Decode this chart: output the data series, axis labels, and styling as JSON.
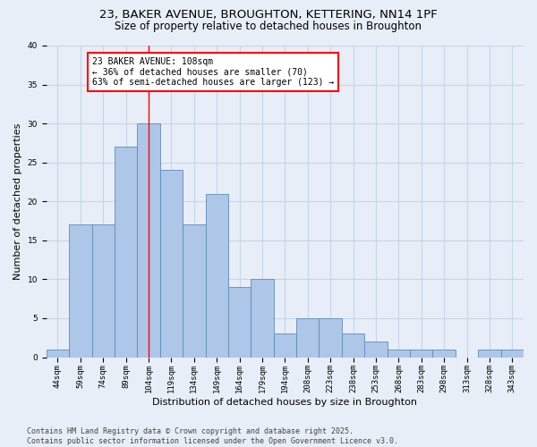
{
  "title1": "23, BAKER AVENUE, BROUGHTON, KETTERING, NN14 1PF",
  "title2": "Size of property relative to detached houses in Broughton",
  "xlabel": "Distribution of detached houses by size in Broughton",
  "ylabel": "Number of detached properties",
  "categories": [
    "44sqm",
    "59sqm",
    "74sqm",
    "89sqm",
    "104sqm",
    "119sqm",
    "134sqm",
    "149sqm",
    "164sqm",
    "179sqm",
    "194sqm",
    "208sqm",
    "223sqm",
    "238sqm",
    "253sqm",
    "268sqm",
    "283sqm",
    "298sqm",
    "313sqm",
    "328sqm",
    "343sqm"
  ],
  "values": [
    1,
    17,
    17,
    27,
    30,
    24,
    17,
    21,
    9,
    10,
    3,
    5,
    5,
    3,
    2,
    1,
    1,
    1,
    0,
    1,
    1
  ],
  "bar_color": "#aec6e8",
  "bar_edge_color": "#5b8db8",
  "bar_edge_width": 0.6,
  "red_line_x": 4.0,
  "annotation_line1": "23 BAKER AVENUE: 108sqm",
  "annotation_line2": "← 36% of detached houses are smaller (70)",
  "annotation_line3": "63% of semi-detached houses are larger (123) →",
  "annotation_box_color": "white",
  "annotation_box_edge": "red",
  "ylim": [
    0,
    40
  ],
  "yticks": [
    0,
    5,
    10,
    15,
    20,
    25,
    30,
    35,
    40
  ],
  "grid_color": "#c5d5e8",
  "background_color": "#e8eef8",
  "footer1": "Contains HM Land Registry data © Crown copyright and database right 2025.",
  "footer2": "Contains public sector information licensed under the Open Government Licence v3.0.",
  "title_fontsize": 9.5,
  "subtitle_fontsize": 8.5,
  "axis_label_fontsize": 8,
  "tick_fontsize": 6.5,
  "annotation_fontsize": 7,
  "footer_fontsize": 6
}
